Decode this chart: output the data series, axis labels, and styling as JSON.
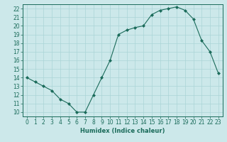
{
  "x": [
    0,
    1,
    2,
    3,
    4,
    5,
    6,
    7,
    8,
    9,
    10,
    11,
    12,
    13,
    14,
    15,
    16,
    17,
    18,
    19,
    20,
    21,
    22,
    23
  ],
  "y": [
    14.0,
    13.5,
    13.0,
    12.5,
    11.5,
    11.0,
    10.0,
    10.0,
    12.0,
    14.0,
    16.0,
    19.0,
    19.5,
    19.8,
    20.0,
    21.3,
    21.8,
    22.0,
    22.2,
    21.8,
    20.8,
    18.3,
    17.0,
    14.5
  ],
  "xlabel": "Humidex (Indice chaleur)",
  "xlim": [
    -0.5,
    23.5
  ],
  "ylim": [
    9.5,
    22.5
  ],
  "yticks": [
    10,
    11,
    12,
    13,
    14,
    15,
    16,
    17,
    18,
    19,
    20,
    21,
    22
  ],
  "xticks": [
    0,
    1,
    2,
    3,
    4,
    5,
    6,
    7,
    8,
    9,
    10,
    11,
    12,
    13,
    14,
    15,
    16,
    17,
    18,
    19,
    20,
    21,
    22,
    23
  ],
  "line_color": "#1a6b5a",
  "marker_color": "#1a6b5a",
  "bg_color": "#cce8ea",
  "grid_color": "#aad4d6",
  "axis_color": "#1a6b5a",
  "text_color": "#1a6b5a",
  "xlabel_fontsize": 6.0,
  "tick_fontsize": 5.5
}
